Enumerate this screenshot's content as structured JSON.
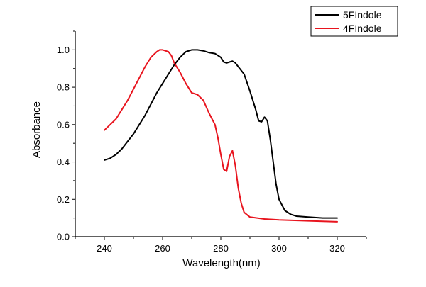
{
  "chart_data": {
    "type": "line",
    "title": "",
    "xlabel": "Wavelength(nm)",
    "ylabel": "Absorbance",
    "xlim": [
      230,
      330
    ],
    "ylim": [
      0.0,
      1.1
    ],
    "xticks": [
      240,
      260,
      280,
      300,
      320
    ],
    "yticks": [
      0.0,
      0.2,
      0.4,
      0.6,
      0.8,
      1.0
    ],
    "xtick_labels": [
      "240",
      "260",
      "280",
      "300",
      "320"
    ],
    "ytick_labels": [
      "0.0",
      "0.2",
      "0.4",
      "0.6",
      "0.8",
      "1.0"
    ],
    "grid": false,
    "legend_position": "top-right",
    "series": [
      {
        "name": "5FIndole",
        "color": "#000000",
        "points": [
          [
            240,
            0.41
          ],
          [
            242,
            0.42
          ],
          [
            244,
            0.44
          ],
          [
            246,
            0.47
          ],
          [
            248,
            0.51
          ],
          [
            250,
            0.55
          ],
          [
            252,
            0.6
          ],
          [
            254,
            0.65
          ],
          [
            256,
            0.71
          ],
          [
            258,
            0.77
          ],
          [
            260,
            0.82
          ],
          [
            262,
            0.87
          ],
          [
            264,
            0.92
          ],
          [
            266,
            0.96
          ],
          [
            268,
            0.99
          ],
          [
            270,
            1.0
          ],
          [
            272,
            1.0
          ],
          [
            274,
            0.995
          ],
          [
            276,
            0.985
          ],
          [
            278,
            0.98
          ],
          [
            280,
            0.96
          ],
          [
            281,
            0.935
          ],
          [
            282,
            0.93
          ],
          [
            283,
            0.935
          ],
          [
            284,
            0.94
          ],
          [
            285,
            0.93
          ],
          [
            286,
            0.91
          ],
          [
            288,
            0.87
          ],
          [
            290,
            0.78
          ],
          [
            292,
            0.68
          ],
          [
            293,
            0.62
          ],
          [
            294,
            0.615
          ],
          [
            295,
            0.64
          ],
          [
            296,
            0.62
          ],
          [
            297,
            0.52
          ],
          [
            298,
            0.4
          ],
          [
            299,
            0.28
          ],
          [
            300,
            0.2
          ],
          [
            302,
            0.14
          ],
          [
            304,
            0.12
          ],
          [
            306,
            0.11
          ],
          [
            310,
            0.105
          ],
          [
            315,
            0.1
          ],
          [
            320,
            0.1
          ]
        ]
      },
      {
        "name": "4FIndole",
        "color": "#e8141e",
        "points": [
          [
            240,
            0.57
          ],
          [
            242,
            0.6
          ],
          [
            244,
            0.63
          ],
          [
            246,
            0.68
          ],
          [
            248,
            0.73
          ],
          [
            250,
            0.79
          ],
          [
            252,
            0.85
          ],
          [
            254,
            0.91
          ],
          [
            256,
            0.96
          ],
          [
            258,
            0.99
          ],
          [
            259,
            1.0
          ],
          [
            260,
            1.0
          ],
          [
            261,
            0.995
          ],
          [
            262,
            0.99
          ],
          [
            263,
            0.97
          ],
          [
            264,
            0.93
          ],
          [
            266,
            0.88
          ],
          [
            268,
            0.82
          ],
          [
            270,
            0.77
          ],
          [
            272,
            0.76
          ],
          [
            274,
            0.73
          ],
          [
            276,
            0.66
          ],
          [
            278,
            0.6
          ],
          [
            279,
            0.53
          ],
          [
            280,
            0.44
          ],
          [
            281,
            0.36
          ],
          [
            282,
            0.35
          ],
          [
            283,
            0.43
          ],
          [
            284,
            0.46
          ],
          [
            285,
            0.38
          ],
          [
            286,
            0.26
          ],
          [
            287,
            0.18
          ],
          [
            288,
            0.13
          ],
          [
            290,
            0.105
          ],
          [
            295,
            0.095
          ],
          [
            300,
            0.09
          ],
          [
            310,
            0.085
          ],
          [
            320,
            0.08
          ]
        ]
      }
    ]
  }
}
